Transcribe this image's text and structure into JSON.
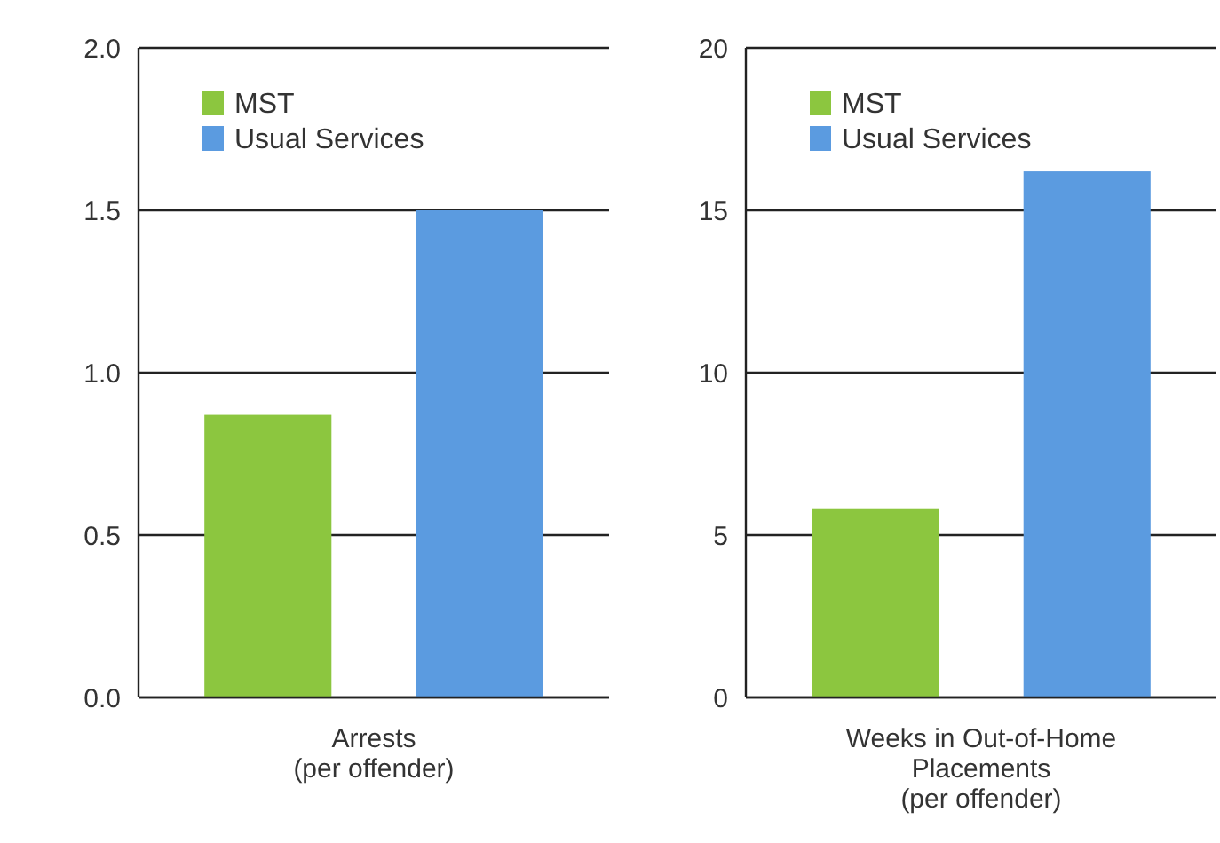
{
  "chart_data": [
    {
      "type": "bar",
      "categories": [
        null
      ],
      "xlabel": "Arrests\n(per offender)",
      "series": [
        {
          "name": "MST",
          "color": "#8cc63f",
          "values": [
            0.87
          ]
        },
        {
          "name": "Usual Services",
          "color": "#5b9be0",
          "values": [
            1.5
          ]
        }
      ],
      "ylim": [
        0,
        2
      ],
      "yticks": [
        {
          "value": 0,
          "label": "0.0"
        },
        {
          "value": 0.5,
          "label": "0.5"
        },
        {
          "value": 1,
          "label": "1.0"
        },
        {
          "value": 1.5,
          "label": "1.5"
        },
        {
          "value": 2,
          "label": "2.0"
        }
      ],
      "grid": "y",
      "legend": "top left"
    },
    {
      "type": "bar",
      "categories": [
        null
      ],
      "xlabel": "Weeks in Out-of-Home\nPlacements\n(per offender)",
      "series": [
        {
          "name": "MST",
          "color": "#8cc63f",
          "values": [
            5.8
          ]
        },
        {
          "name": "Usual Services",
          "color": "#5b9be0",
          "values": [
            16.2
          ]
        }
      ],
      "ylim": [
        0,
        20
      ],
      "yticks": [
        0,
        5,
        10,
        15,
        20
      ],
      "grid": "y",
      "legend": "top left"
    }
  ]
}
